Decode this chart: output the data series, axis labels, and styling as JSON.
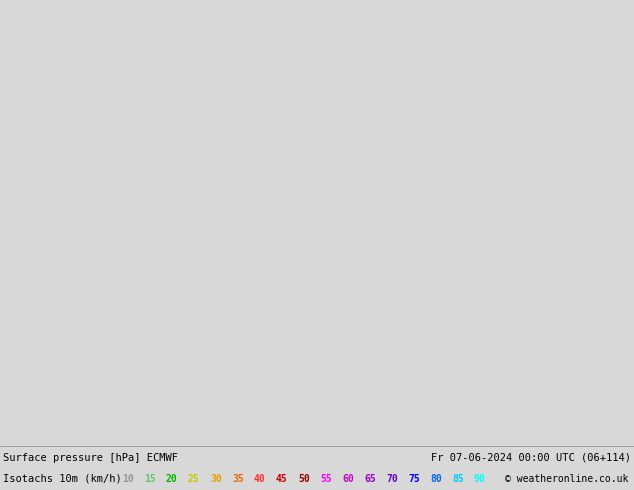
{
  "title_line1": "Surface pressure [hPa] ECMWF",
  "title_line2": "Isotachs 10m (km/h)",
  "date_str": "Fr 07-06-2024 00:00 UTC (06+114)",
  "copyright": "© weatheronline.co.uk",
  "isotach_values": [
    10,
    15,
    20,
    25,
    30,
    35,
    40,
    45,
    50,
    55,
    60,
    65,
    70,
    75,
    80,
    85,
    90
  ],
  "isotach_colors_legend": [
    "#969696",
    "#64c864",
    "#00b400",
    "#c8c800",
    "#e6a000",
    "#f06400",
    "#ff3232",
    "#c80000",
    "#960000",
    "#ff00ff",
    "#c800c8",
    "#9600c8",
    "#6400c8",
    "#0000ff",
    "#0064ff",
    "#00c8ff",
    "#00ffff"
  ],
  "isotach_fill_colors": [
    "#ffffff00",
    "#c8f0c8",
    "#a0e8a0",
    "#78e078",
    "#50d850",
    "#28d028",
    "#00c800",
    "#00a000",
    "#007800",
    "#005000",
    "#002800",
    "#000000",
    "#000000",
    "#000000",
    "#000000",
    "#000000",
    "#000000"
  ],
  "figsize": [
    6.34,
    4.9
  ],
  "dpi": 100,
  "extent": [
    -12.0,
    8.0,
    47.0,
    62.0
  ],
  "bg_color": "#d8d8d8",
  "sea_color": "#dcdcdc",
  "land_color": "#c8f0c8"
}
